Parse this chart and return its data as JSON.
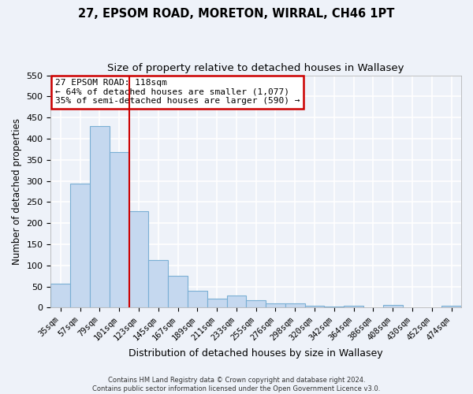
{
  "title": "27, EPSOM ROAD, MORETON, WIRRAL, CH46 1PT",
  "subtitle": "Size of property relative to detached houses in Wallasey",
  "xlabel": "Distribution of detached houses by size in Wallasey",
  "ylabel": "Number of detached properties",
  "bar_labels": [
    "35sqm",
    "57sqm",
    "79sqm",
    "101sqm",
    "123sqm",
    "145sqm",
    "167sqm",
    "189sqm",
    "211sqm",
    "233sqm",
    "255sqm",
    "276sqm",
    "298sqm",
    "320sqm",
    "342sqm",
    "364sqm",
    "386sqm",
    "408sqm",
    "430sqm",
    "452sqm",
    "474sqm"
  ],
  "bar_values": [
    57,
    293,
    430,
    368,
    228,
    113,
    76,
    39,
    21,
    29,
    18,
    10,
    10,
    5,
    3,
    5,
    0,
    6,
    0,
    0,
    5
  ],
  "bar_color": "#c5d8ef",
  "bar_edgecolor": "#7aafd4",
  "vline_color": "#cc0000",
  "ylim": [
    0,
    550
  ],
  "yticks": [
    0,
    50,
    100,
    150,
    200,
    250,
    300,
    350,
    400,
    450,
    500,
    550
  ],
  "annotation_title": "27 EPSOM ROAD: 118sqm",
  "annotation_line1": "← 64% of detached houses are smaller (1,077)",
  "annotation_line2": "35% of semi-detached houses are larger (590) →",
  "annotation_box_color": "#ffffff",
  "annotation_box_edgecolor": "#cc0000",
  "footer1": "Contains HM Land Registry data © Crown copyright and database right 2024.",
  "footer2": "Contains public sector information licensed under the Open Government Licence v3.0.",
  "background_color": "#eef2f9",
  "grid_color": "#ffffff",
  "title_fontsize": 10.5,
  "subtitle_fontsize": 9.5,
  "vline_index": 4
}
